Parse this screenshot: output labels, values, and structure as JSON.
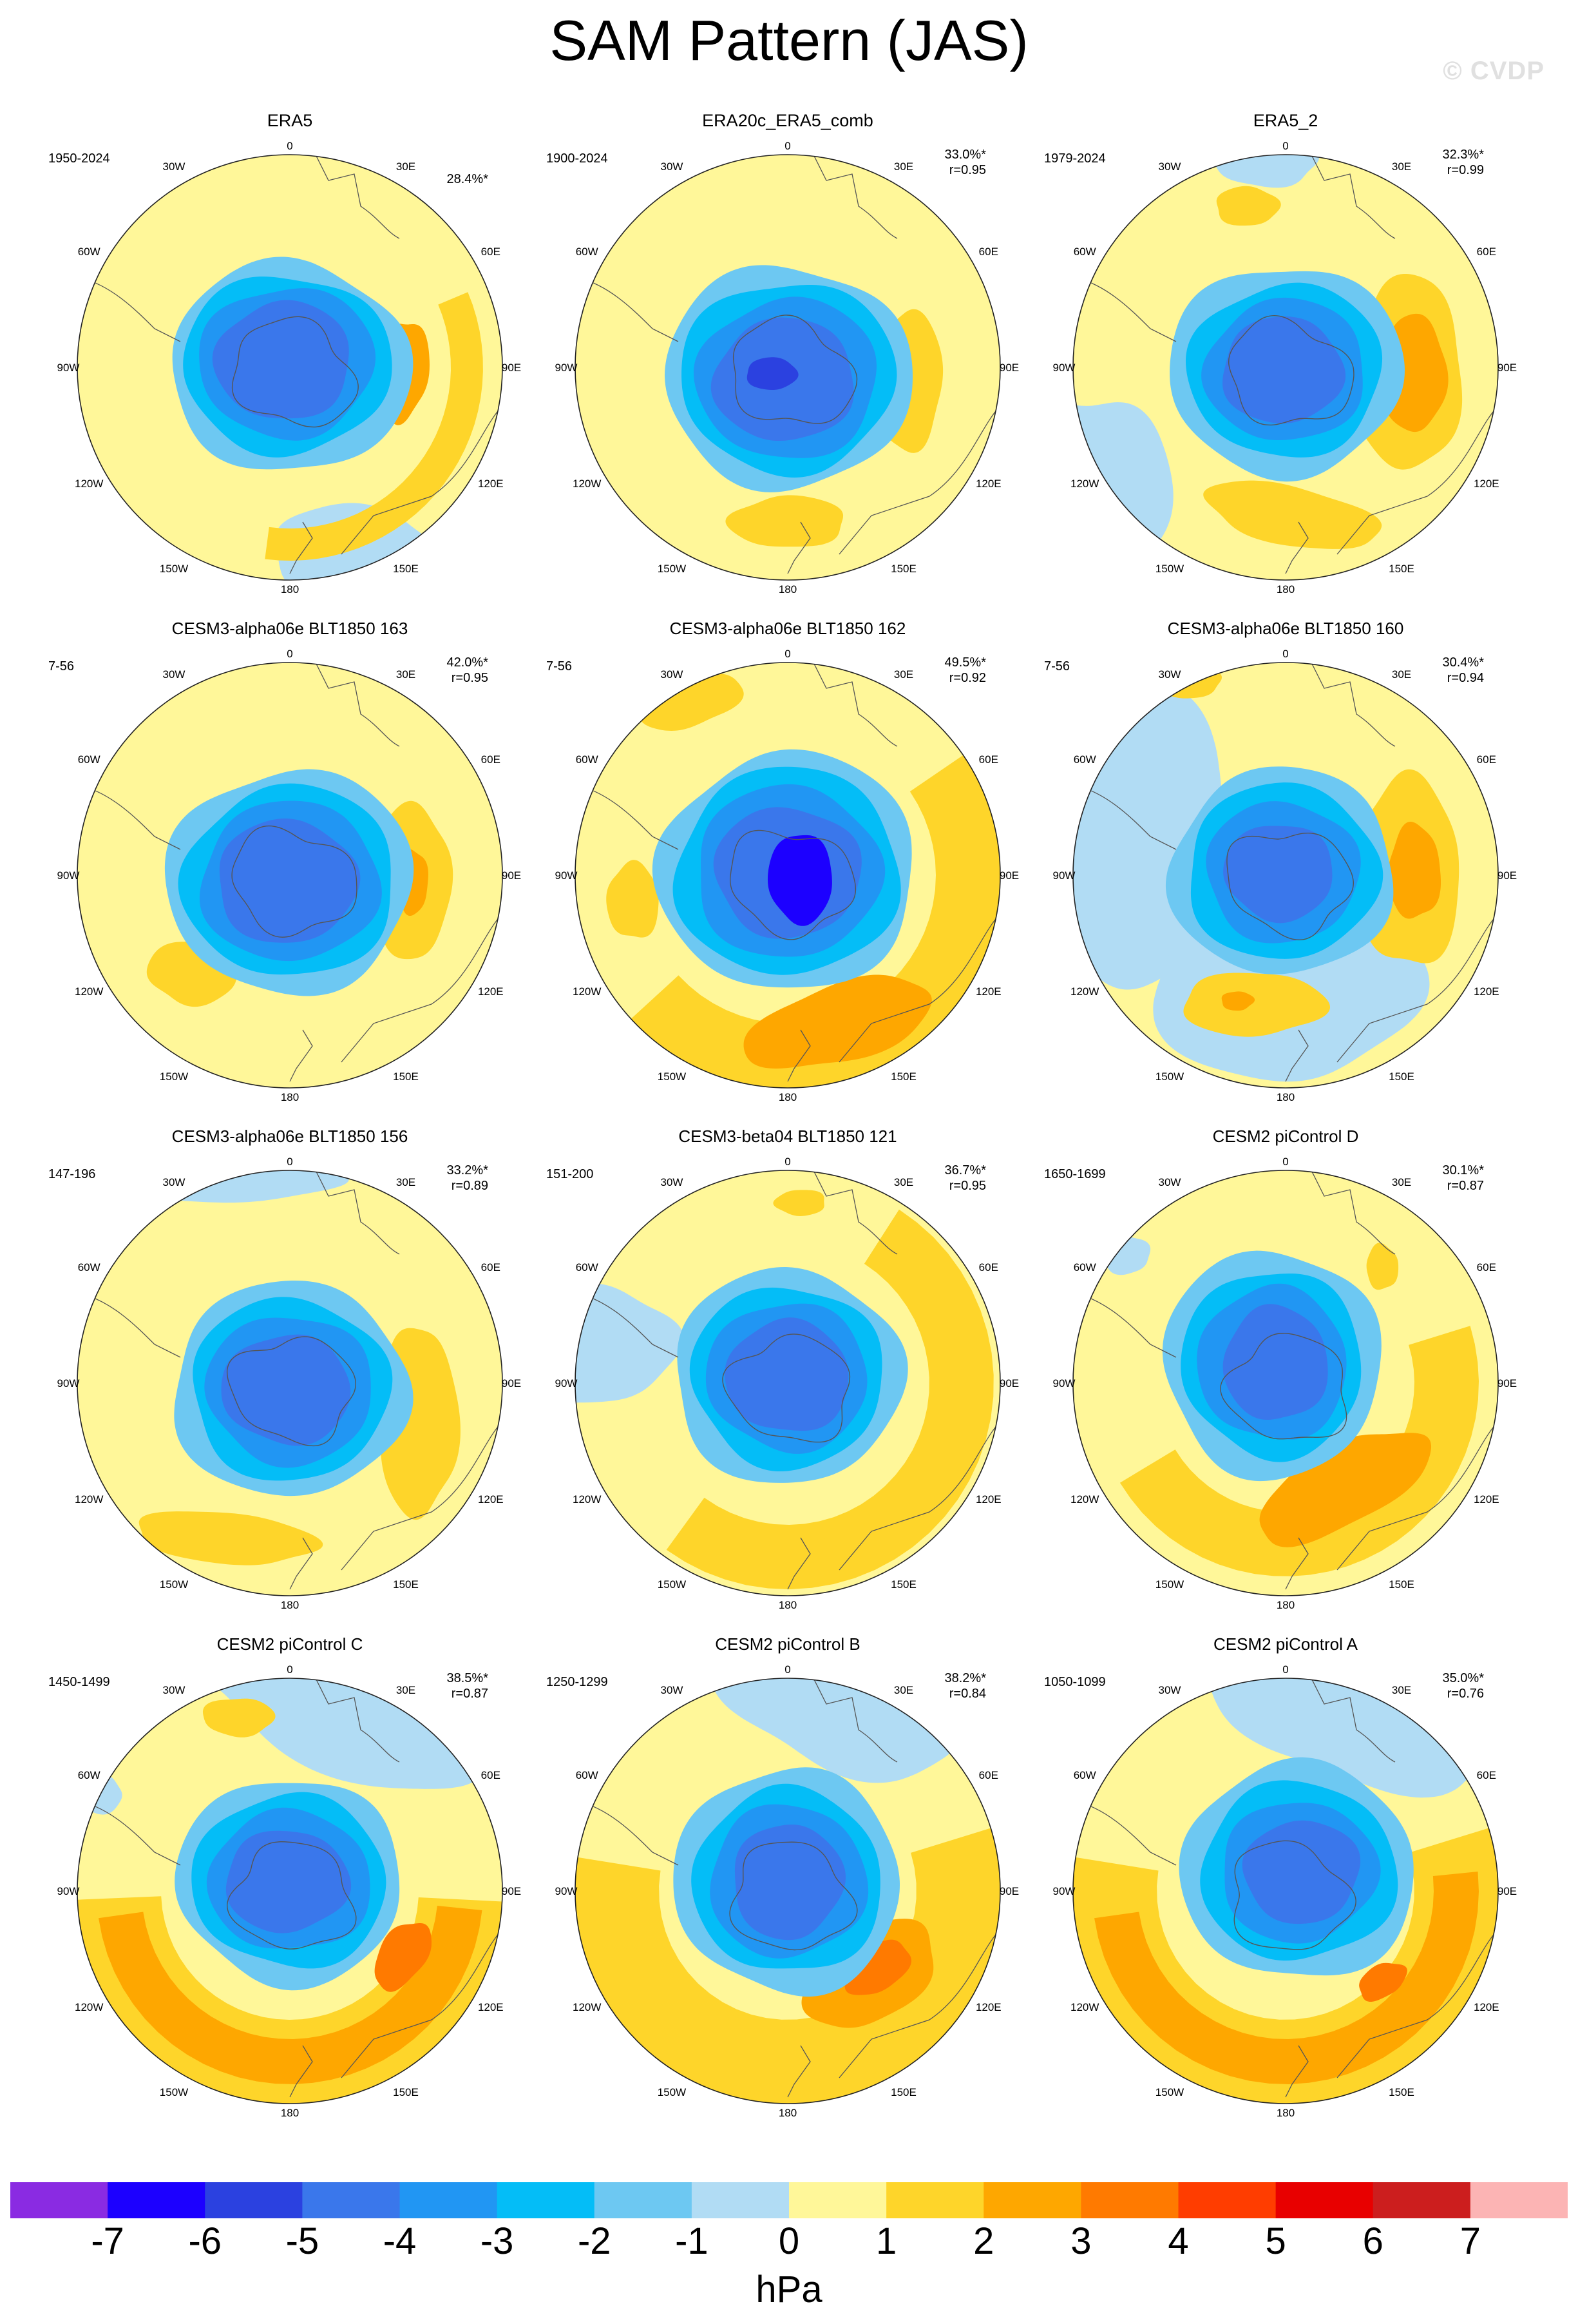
{
  "title": "SAM Pattern (JAS)",
  "watermark": "© CVDP",
  "units": "hPa",
  "lon_labels": [
    "0",
    "30E",
    "60E",
    "90E",
    "120E",
    "150E",
    "180",
    "150W",
    "120W",
    "90W",
    "60W",
    "30W"
  ],
  "colorbar": {
    "ticks": [
      "-7",
      "-6",
      "-5",
      "-4",
      "-3",
      "-2",
      "-1",
      "0",
      "1",
      "2",
      "3",
      "4",
      "5",
      "6",
      "7"
    ],
    "colors": [
      "#8a2be2",
      "#1c00ff",
      "#2b41e0",
      "#3a77eb",
      "#2196f3",
      "#04bdf7",
      "#6dc8f2",
      "#b1dcf4",
      "#fff799",
      "#fed52a",
      "#fea700",
      "#ff7a00",
      "#ff3d00",
      "#e80000",
      "#cc1e1e",
      "#fcb4b4"
    ]
  },
  "panels": [
    {
      "title": "ERA5",
      "years": "1950-2024",
      "pct": "28.4%*",
      "r": "",
      "variant": 1
    },
    {
      "title": "ERA20c_ERA5_comb",
      "years": "1900-2024",
      "pct": "33.0%*",
      "r": "r=0.95",
      "variant": 2
    },
    {
      "title": "ERA5_2",
      "years": "1979-2024",
      "pct": "32.3%*",
      "r": "r=0.99",
      "variant": 3
    },
    {
      "title": "CESM3-alpha06e BLT1850 163",
      "years": "7-56",
      "pct": "42.0%*",
      "r": "r=0.95",
      "variant": 4
    },
    {
      "title": "CESM3-alpha06e BLT1850 162",
      "years": "7-56",
      "pct": "49.5%*",
      "r": "r=0.92",
      "variant": 5
    },
    {
      "title": "CESM3-alpha06e BLT1850 160",
      "years": "7-56",
      "pct": "30.4%*",
      "r": "r=0.94",
      "variant": 6
    },
    {
      "title": "CESM3-alpha06e BLT1850 156",
      "years": "147-196",
      "pct": "33.2%*",
      "r": "r=0.89",
      "variant": 7
    },
    {
      "title": "CESM3-beta04 BLT1850 121",
      "years": "151-200",
      "pct": "36.7%*",
      "r": "r=0.95",
      "variant": 8
    },
    {
      "title": "CESM2 piControl D",
      "years": "1650-1699",
      "pct": "30.1%*",
      "r": "r=0.87",
      "variant": 9
    },
    {
      "title": "CESM2 piControl C",
      "years": "1450-1499",
      "pct": "38.5%*",
      "r": "r=0.87",
      "variant": 10
    },
    {
      "title": "CESM2 piControl B",
      "years": "1250-1299",
      "pct": "38.2%*",
      "r": "r=0.84",
      "variant": 11
    },
    {
      "title": "CESM2 piControl A",
      "years": "1050-1099",
      "pct": "35.0%*",
      "r": "r=0.76",
      "variant": 12
    }
  ]
}
